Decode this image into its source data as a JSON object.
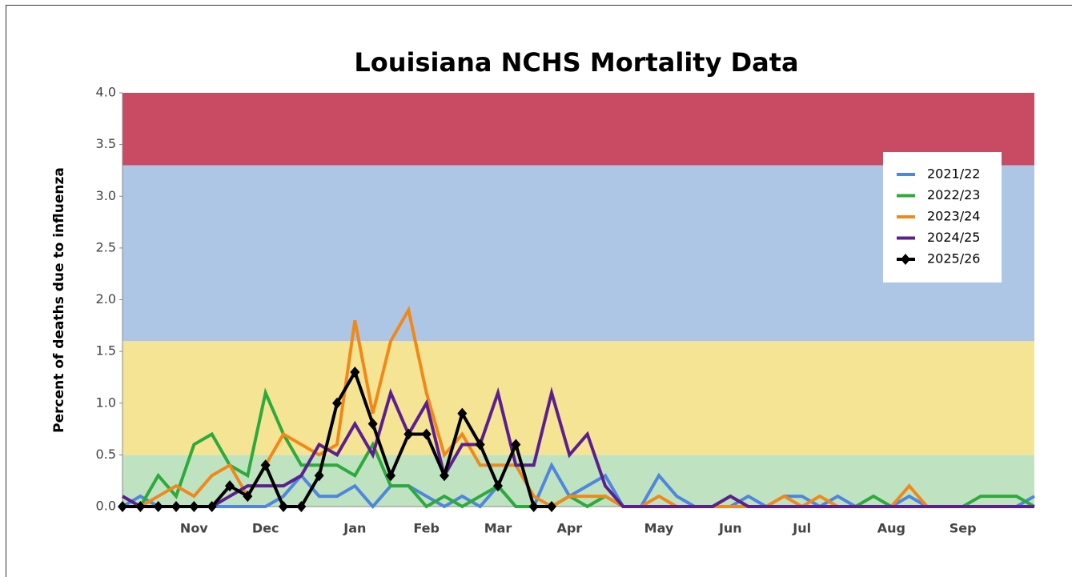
{
  "chart_data": {
    "type": "line",
    "title": "Louisiana NCHS Mortality Data",
    "y_label": "Percent of deaths due to influenza",
    "categories": [
      null,
      null,
      null,
      null,
      "Nov",
      null,
      null,
      null,
      "Dec",
      null,
      null,
      null,
      null,
      "Jan",
      null,
      null,
      null,
      "Feb",
      null,
      null,
      null,
      "Mar",
      null,
      null,
      null,
      "Apr",
      null,
      null,
      null,
      null,
      "May",
      null,
      null,
      null,
      "Jun",
      null,
      null,
      null,
      "Jul",
      null,
      null,
      null,
      null,
      "Aug",
      null,
      null,
      null,
      "Sep",
      null,
      null,
      null,
      null
    ],
    "ylim": [
      0,
      4
    ],
    "yticks": [
      {
        "value": 0,
        "label": "0.0"
      },
      0.5,
      {
        "value": 1,
        "label": "1.0"
      },
      1.5,
      {
        "value": 2,
        "label": "2.0"
      },
      2.5,
      {
        "value": 3,
        "label": "3.0"
      },
      3.5,
      {
        "value": 4,
        "label": "4.0"
      }
    ],
    "bands": [
      {
        "from": 0,
        "to": 0.5,
        "color": "#bfe3c1"
      },
      {
        "from": 0.5,
        "to": 1.6,
        "color": "#f5e493"
      },
      {
        "from": 1.6,
        "to": 3.3,
        "color": "#adc6e5"
      },
      {
        "from": 3.3,
        "to": 4,
        "color": "#c94a63"
      }
    ],
    "legend": "upper right",
    "series": [
      {
        "name": "2021/22",
        "color": "#4f86de",
        "values": [
          0,
          0.1,
          0,
          0,
          0,
          0,
          0,
          0,
          0,
          0.1,
          0.3,
          0.1,
          0.1,
          0.2,
          0,
          0.2,
          0.2,
          0.1,
          0,
          0.1,
          0,
          0.2,
          0,
          0,
          0.4,
          0.1,
          0.2,
          0.3,
          0,
          0,
          0.3,
          0.1,
          0,
          0,
          0,
          0.1,
          0,
          0.1,
          0.1,
          0,
          0.1,
          0,
          0,
          0,
          0.1,
          0,
          0,
          0,
          0,
          0,
          0,
          0.1
        ]
      },
      {
        "name": "2022/23",
        "color": "#2eaa3c",
        "values": [
          0.1,
          0,
          0.3,
          0.1,
          0.6,
          0.7,
          0.4,
          0.3,
          1.1,
          0.7,
          0.4,
          0.4,
          0.4,
          0.3,
          0.6,
          0.2,
          0.2,
          0,
          0.1,
          0,
          0.1,
          0.2,
          0,
          0,
          0,
          0.1,
          0,
          0.1,
          0,
          0,
          0,
          0,
          0,
          0,
          0.1,
          0,
          0,
          0,
          0,
          0,
          0,
          0,
          0.1,
          0,
          0,
          0,
          0,
          0,
          0.1,
          0.1,
          0.1,
          0
        ]
      },
      {
        "name": "2023/24",
        "color": "#f0891a",
        "values": [
          0,
          0,
          0.1,
          0.2,
          0.1,
          0.3,
          0.4,
          0.1,
          0.4,
          0.7,
          0.6,
          0.5,
          0.6,
          1.8,
          0.9,
          1.6,
          1.9,
          1.1,
          0.5,
          0.7,
          0.4,
          0.4,
          0.4,
          0.1,
          0,
          0.1,
          0.1,
          0.1,
          0,
          0,
          0.1,
          0,
          0,
          0,
          0,
          0,
          0,
          0.1,
          0,
          0.1,
          0,
          0,
          0,
          0,
          0.2,
          0,
          0,
          0,
          0,
          0,
          0,
          0
        ]
      },
      {
        "name": "2024/25",
        "color": "#5b1f8e",
        "values": [
          0.1,
          0,
          0,
          0,
          0,
          0,
          0.1,
          0.2,
          0.2,
          0.2,
          0.3,
          0.6,
          0.5,
          0.8,
          0.5,
          1.1,
          0.7,
          1.0,
          0.3,
          0.6,
          0.6,
          1.1,
          0.4,
          0.4,
          1.1,
          0.5,
          0.7,
          0.2,
          0,
          0,
          0,
          0,
          0,
          0,
          0.1,
          0,
          0,
          0,
          0,
          0,
          0,
          0,
          0,
          0,
          0,
          0,
          0,
          0,
          0,
          0,
          0,
          0
        ]
      },
      {
        "name": "2025/26",
        "color": "#000000",
        "marker": "diamond",
        "values": [
          0,
          0,
          0,
          0,
          0,
          0,
          0.2,
          0.1,
          0.4,
          0,
          0,
          0.3,
          1.0,
          1.3,
          0.8,
          0.3,
          0.7,
          0.7,
          0.3,
          0.9,
          0.6,
          0.2,
          0.6,
          0,
          0,
          null,
          null,
          null,
          null,
          null,
          null,
          null,
          null,
          null,
          null,
          null,
          null,
          null,
          null,
          null,
          null,
          null,
          null,
          null,
          null,
          null,
          null,
          null,
          null,
          null,
          null,
          null
        ]
      }
    ]
  }
}
